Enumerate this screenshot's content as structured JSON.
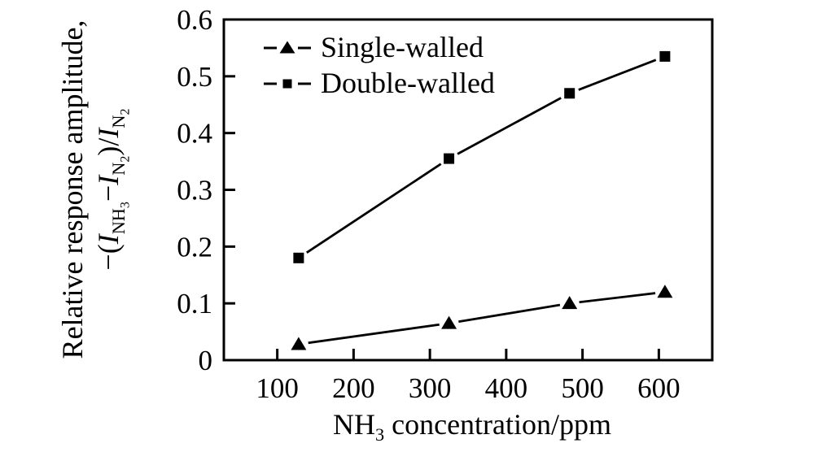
{
  "figure": {
    "background": "#ffffff",
    "ink_color": "#000000"
  },
  "chart_data": {
    "type": "line",
    "title": "",
    "grid": false,
    "legend_position": "top-left-inside",
    "xlabel": {
      "base": "NH",
      "sub": "3",
      "rest": " concentration/ppm"
    },
    "ylabel": {
      "line1": "Relative response amplitude,",
      "formula": {
        "open": "−(",
        "i1": "I",
        "sub1_main": "NH",
        "sub1_sub": "3",
        "minus": "−",
        "i2": "I",
        "sub2_main": "N",
        "sub2_sub": "2",
        "close": ")/",
        "i3": "I",
        "sub3_main": "N",
        "sub3_sub": "2"
      }
    },
    "xlim": [
      30,
      670
    ],
    "ylim": [
      0,
      0.6
    ],
    "x_ticks": [
      100,
      200,
      300,
      400,
      500,
      600
    ],
    "x_tick_labels": [
      "100",
      "200",
      "300",
      "400",
      "500",
      "600"
    ],
    "y_ticks": [
      0,
      0.1,
      0.2,
      0.3,
      0.4,
      0.5,
      0.6
    ],
    "y_tick_labels": [
      "0",
      "0.1",
      "0.2",
      "0.3",
      "0.4",
      "0.5",
      "0.6"
    ],
    "x": [
      128,
      325,
      483,
      608
    ],
    "series": [
      {
        "name": "Single-walled",
        "marker": "triangle",
        "color": "#000000",
        "values": [
          0.028,
          0.065,
          0.1,
          0.12
        ]
      },
      {
        "name": "Double-walled",
        "marker": "square",
        "color": "#000000",
        "values": [
          0.18,
          0.355,
          0.47,
          0.535
        ]
      }
    ]
  }
}
